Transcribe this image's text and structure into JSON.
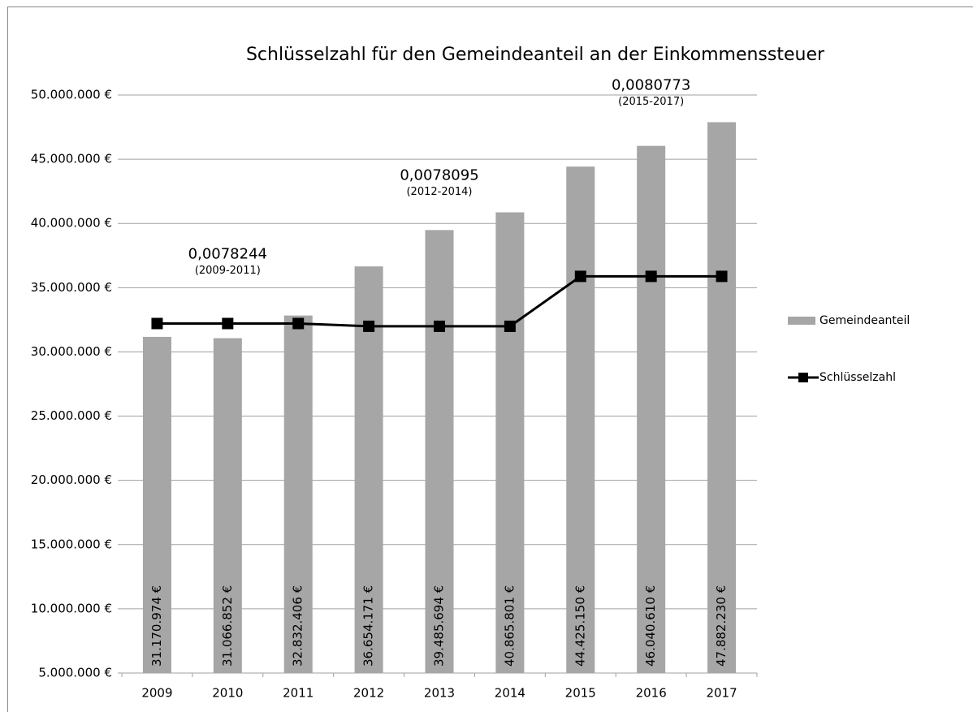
{
  "chart_data": {
    "type": "bar-line",
    "title": "Schlüsselzahl für den Gemeindeanteil an der Einkommenssteuer",
    "categories": [
      "2009",
      "2010",
      "2011",
      "2012",
      "2013",
      "2014",
      "2015",
      "2016",
      "2017"
    ],
    "series": [
      {
        "name": "Gemeindeanteil",
        "type": "bar",
        "color": "#a6a6a6",
        "values": [
          31170974,
          31066852,
          32832406,
          36654171,
          39485694,
          40865801,
          44425150,
          46040610,
          47882230
        ],
        "value_labels": [
          "31.170.974 €",
          "31.066.852 €",
          "32.832.406 €",
          "36.654.171 €",
          "39.485.694 €",
          "40.865.801 €",
          "44.425.150 €",
          "46.040.610 €",
          "47.882.230 €"
        ]
      },
      {
        "name": "Schlüsselzahl",
        "type": "line",
        "color": "#000000",
        "axis": "y2",
        "values": [
          0.0078244,
          0.0078244,
          0.0078244,
          0.0078095,
          0.0078095,
          0.0078095,
          0.0080773,
          0.0080773,
          0.0080773
        ]
      }
    ],
    "annotations": [
      {
        "text": "0,0078244",
        "period": "(2009-2011)"
      },
      {
        "text": "0,0078095",
        "period": "(2012-2014)"
      },
      {
        "text": "0,0080773",
        "period": "(2015-2017)"
      }
    ],
    "ylim": [
      5000000,
      50000000
    ],
    "yticks": [
      {
        "value": 5000000,
        "label": "5.000.000 €"
      },
      {
        "value": 10000000,
        "label": "10.000.000 €"
      },
      {
        "value": 15000000,
        "label": "15.000.000 €"
      },
      {
        "value": 20000000,
        "label": "20.000.000 €"
      },
      {
        "value": 25000000,
        "label": "25.000.000 €"
      },
      {
        "value": 30000000,
        "label": "30.000.000 €"
      },
      {
        "value": 35000000,
        "label": "35.000.000 €"
      },
      {
        "value": 40000000,
        "label": "40.000.000 €"
      },
      {
        "value": 45000000,
        "label": "45.000.000 €"
      },
      {
        "value": 50000000,
        "label": "50.000.000 €"
      }
    ],
    "y2lim": [
      0.00595,
      0.00905
    ],
    "grid": true,
    "legend": "right"
  }
}
